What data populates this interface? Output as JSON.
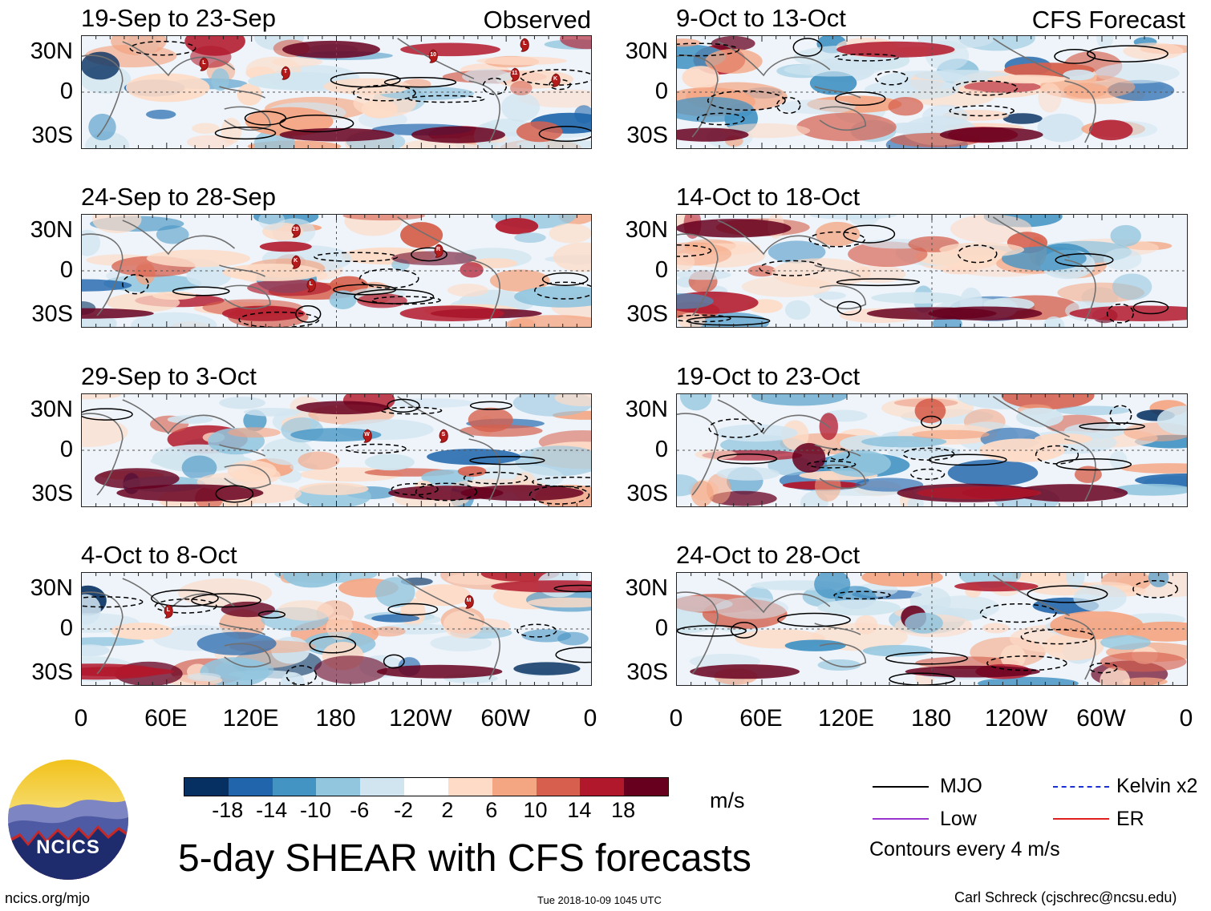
{
  "headers": {
    "observed": "Observed",
    "forecast": "CFS Forecast"
  },
  "lat_labels": [
    "30N",
    "0",
    "30S"
  ],
  "lon_labels": [
    "0",
    "60E",
    "120E",
    "180",
    "120W",
    "60W",
    "0"
  ],
  "panels": {
    "observed": [
      {
        "title": "19-Sep to 23-Sep",
        "storms": [
          "L",
          "T",
          "10",
          "L",
          "11",
          "K"
        ]
      },
      {
        "title": "24-Sep to 28-Sep",
        "storms": [
          "29",
          "K",
          "L",
          "R"
        ]
      },
      {
        "title": "29-Sep to 3-Oct",
        "storms": [
          "W",
          "S"
        ]
      },
      {
        "title": "4-Oct to 8-Oct",
        "storms": [
          "L",
          "M"
        ]
      }
    ],
    "forecast": [
      {
        "title": "9-Oct to 13-Oct"
      },
      {
        "title": "14-Oct to 18-Oct"
      },
      {
        "title": "19-Oct to 23-Oct"
      },
      {
        "title": "24-Oct to 28-Oct"
      }
    ]
  },
  "colorbar": {
    "colors": [
      "#053061",
      "#2166ac",
      "#4393c3",
      "#92c5de",
      "#d1e5f0",
      "#ffffff",
      "#fddbc7",
      "#f4a582",
      "#d6604d",
      "#b2182b",
      "#67001f"
    ],
    "ticks": [
      "-18",
      "-14",
      "-10",
      "-6",
      "-2",
      "2",
      "6",
      "10",
      "14",
      "18"
    ],
    "unit": "m/s"
  },
  "legend": {
    "mjo": "MJO",
    "low": "Low",
    "kelvin": "Kelvin x2",
    "er": "ER",
    "contours": "Contours every 4 m/s",
    "colors": {
      "mjo": "#000000",
      "low": "#9933cc",
      "kelvin": "#1a2fd6",
      "er": "#e02020"
    }
  },
  "title": "5-day SHEAR with CFS forecasts",
  "logo_text": "NCICS",
  "footer": {
    "left": "ncics.org/mjo",
    "center": "Tue 2018-10-09 1045 UTC",
    "right": "Carl Schreck (cjschrec@ncsu.edu)"
  }
}
